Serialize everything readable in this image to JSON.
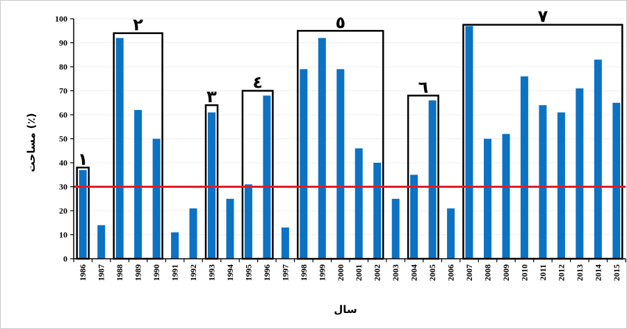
{
  "chart_data": {
    "type": "bar",
    "xlabel": "سال",
    "ylabel": "مساحت (٪)",
    "ylim": [
      0,
      100
    ],
    "yticks": [
      "0",
      "10",
      "20",
      "30",
      "40",
      "50",
      "60",
      "70",
      "80",
      "90",
      "100"
    ],
    "categories": [
      "1986",
      "1987",
      "1988",
      "1989",
      "1990",
      "1991",
      "1992",
      "1993",
      "1994",
      "1995",
      "1996",
      "1997",
      "1998",
      "1999",
      "2000",
      "2001",
      "2002",
      "2003",
      "2004",
      "2005",
      "2006",
      "2007",
      "2008",
      "2009",
      "2010",
      "2011",
      "2012",
      "2013",
      "2014",
      "2015"
    ],
    "values": [
      37,
      14,
      92,
      62,
      50,
      11,
      21,
      61,
      25,
      31,
      68,
      13,
      79,
      92,
      79,
      46,
      40,
      25,
      35,
      66,
      21,
      97,
      50,
      52,
      76,
      64,
      61,
      71,
      83,
      65
    ],
    "bar_color": "#0b72c4",
    "threshold": {
      "value": 30,
      "color": "#e31b23"
    },
    "groups": [
      {
        "label": "١",
        "from": "1986",
        "to": "1986",
        "top": 38
      },
      {
        "label": "٢",
        "from": "1988",
        "to": "1990",
        "top": 94
      },
      {
        "label": "٣",
        "from": "1993",
        "to": "1993",
        "top": 64
      },
      {
        "label": "٤",
        "from": "1995",
        "to": "1996",
        "top": 70
      },
      {
        "label": "٥",
        "from": "1998",
        "to": "2002",
        "top": 95
      },
      {
        "label": "٦",
        "from": "2004",
        "to": "2005",
        "top": 68
      },
      {
        "label": "٧",
        "from": "2007",
        "to": "2015",
        "top": 97.5
      }
    ]
  }
}
